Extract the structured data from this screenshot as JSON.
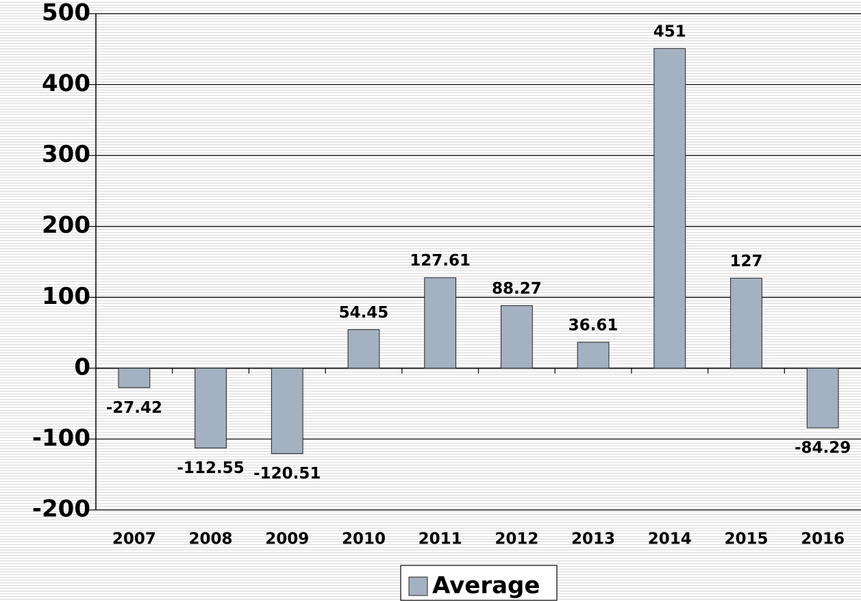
{
  "chart_data": {
    "type": "bar",
    "categories": [
      "2007",
      "2008",
      "2009",
      "2010",
      "2011",
      "2012",
      "2013",
      "2014",
      "2015",
      "2016"
    ],
    "series": [
      {
        "name": "Average",
        "color": "#a3b1c1",
        "values": [
          -27.42,
          -112.55,
          -120.51,
          54.45,
          127.61,
          88.27,
          36.61,
          451,
          127,
          -84.29
        ]
      }
    ],
    "ylim": [
      -200,
      500
    ],
    "yticks": [
      -200,
      -100,
      0,
      100,
      200,
      300,
      400,
      500
    ],
    "grid": true,
    "legend": "bottom"
  }
}
